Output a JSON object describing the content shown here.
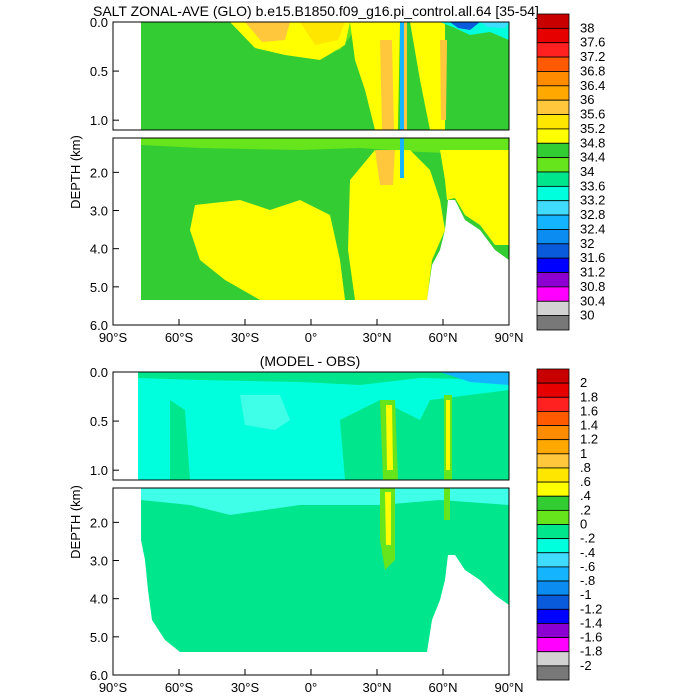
{
  "chart_data": [
    {
      "type": "heatmap",
      "title": "SALT ZONAL-AVE (GLO) b.e15.B1850.f09_g16.pi_control.all.64 [35-54]",
      "ylabel": "DEPTH (km)",
      "xlabel": "",
      "x_ticks": [
        "90°S",
        "60°S",
        "30°S",
        "0°",
        "30°N",
        "60°N",
        "90°N"
      ],
      "y_ticks_upper": [
        "0.0",
        "0.5",
        "1.0"
      ],
      "y_ticks_lower": [
        "2.0",
        "3.0",
        "4.0",
        "5.0",
        "6.0"
      ],
      "xlim": [
        -90,
        90
      ],
      "ylim_upper_km": [
        0,
        1.1
      ],
      "ylim_lower_km": [
        1.1,
        6.0
      ],
      "colorbar": {
        "labels": [
          "38",
          "37.6",
          "37.2",
          "36.8",
          "36.4",
          "36",
          "35.6",
          "35.2",
          "34.8",
          "34.4",
          "34",
          "33.6",
          "33.2",
          "32.8",
          "32.4",
          "32",
          "31.6",
          "31.2",
          "30.8",
          "30.4",
          "30"
        ],
        "colors": [
          "#c80000",
          "#e60000",
          "#ff2020",
          "#ff5a00",
          "#ff8c00",
          "#ffa800",
          "#ffc83c",
          "#ffe600",
          "#ffff00",
          "#32cd32",
          "#66e41c",
          "#00e68c",
          "#00ffdc",
          "#40dcff",
          "#14b4ff",
          "#0a8cf0",
          "#0a5adc",
          "#0000ff",
          "#8c00d2",
          "#ff00ff",
          "#d2d2d2",
          "#787878"
        ]
      }
    },
    {
      "type": "heatmap",
      "title": "(MODEL - OBS)",
      "ylabel": "DEPTH (km)",
      "xlabel": "",
      "x_ticks": [
        "90°S",
        "60°S",
        "30°S",
        "0°",
        "30°N",
        "60°N",
        "90°N"
      ],
      "y_ticks_upper": [
        "0.0",
        "0.5",
        "1.0"
      ],
      "y_ticks_lower": [
        "2.0",
        "3.0",
        "4.0",
        "5.0",
        "6.0"
      ],
      "xlim": [
        -90,
        90
      ],
      "ylim_upper_km": [
        0,
        1.1
      ],
      "ylim_lower_km": [
        1.1,
        6.0
      ],
      "colorbar": {
        "labels": [
          "2",
          "1.8",
          "1.6",
          "1.4",
          "1.2",
          "1",
          ".8",
          ".6",
          ".4",
          ".2",
          "0",
          "-.2",
          "-.4",
          "-.6",
          "-.8",
          "-1",
          "-1.2",
          "-1.4",
          "-1.6",
          "-1.8",
          "-2"
        ],
        "colors": [
          "#c80000",
          "#e60000",
          "#ff2020",
          "#ff5a00",
          "#ff8c00",
          "#ffa800",
          "#ffc83c",
          "#ffe600",
          "#ffff00",
          "#32cd32",
          "#66e41c",
          "#00e68c",
          "#00ffdc",
          "#40dcff",
          "#14b4ff",
          "#0a8cf0",
          "#0a5adc",
          "#0000ff",
          "#8c00d2",
          "#ff00ff",
          "#d2d2d2",
          "#787878"
        ]
      }
    }
  ],
  "colors": {
    "green_main": "#33cc33",
    "green_light": "#66e41c",
    "yellow": "#ffff00",
    "yellow_orange": "#ffe600",
    "orange": "#ffc83c",
    "cyan": "#00ffdc",
    "cyan_light": "#40ffe8",
    "green_cyan": "#00e68c",
    "blue": "#14b4ff",
    "dark_blue": "#0a5adc"
  }
}
